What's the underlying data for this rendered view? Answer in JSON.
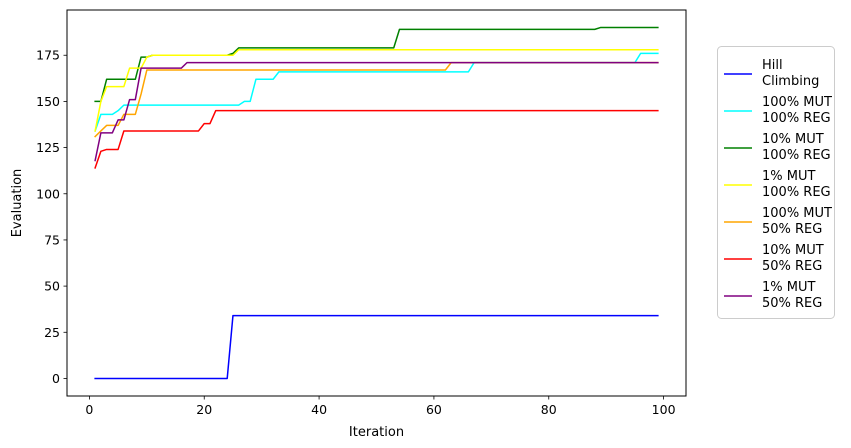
{
  "chart_data": {
    "type": "line",
    "title": "",
    "xlabel": "Iteration",
    "ylabel": "Evaluation",
    "xlim": [
      -3.9,
      103.9
    ],
    "ylim": [
      -9.5,
      199.5
    ],
    "xticks": [
      0,
      20,
      40,
      60,
      80,
      100
    ],
    "yticks": [
      0,
      25,
      50,
      75,
      100,
      125,
      150,
      175
    ],
    "grid": false,
    "legend_position": "right-outside",
    "series": [
      {
        "name": "Hill\nClimbing",
        "color": "#0000ff",
        "points": [
          [
            1,
            0
          ],
          [
            24,
            0
          ],
          [
            25,
            34
          ],
          [
            99,
            34
          ]
        ]
      },
      {
        "name": "100% MUT\n100% REG",
        "color": "#00ffff",
        "points": [
          [
            1,
            134
          ],
          [
            2,
            143
          ],
          [
            4,
            143
          ],
          [
            5,
            145
          ],
          [
            6,
            148
          ],
          [
            25,
            148
          ],
          [
            26,
            148
          ],
          [
            27,
            150
          ],
          [
            28,
            150
          ],
          [
            29,
            162
          ],
          [
            32,
            162
          ],
          [
            33,
            166
          ],
          [
            66,
            166
          ],
          [
            67,
            171
          ],
          [
            95,
            171
          ],
          [
            96,
            176
          ],
          [
            99,
            176
          ]
        ]
      },
      {
        "name": "10% MUT\n100% REG",
        "color": "#008000",
        "points": [
          [
            1,
            150
          ],
          [
            2,
            150
          ],
          [
            3,
            162
          ],
          [
            8,
            162
          ],
          [
            9,
            174
          ],
          [
            10,
            174
          ],
          [
            11,
            175
          ],
          [
            24,
            175
          ],
          [
            25,
            176
          ],
          [
            26,
            179
          ],
          [
            53,
            179
          ],
          [
            54,
            189
          ],
          [
            88,
            189
          ],
          [
            89,
            190
          ],
          [
            99,
            190
          ]
        ]
      },
      {
        "name": "1% MUT\n100% REG",
        "color": "#ffff00",
        "points": [
          [
            1,
            134
          ],
          [
            2,
            150
          ],
          [
            3,
            158
          ],
          [
            6,
            158
          ],
          [
            7,
            168
          ],
          [
            9,
            168
          ],
          [
            10,
            174
          ],
          [
            11,
            175
          ],
          [
            25,
            175
          ],
          [
            26,
            178
          ],
          [
            99,
            178
          ]
        ]
      },
      {
        "name": "100% MUT\n50% REG",
        "color": "#ffa500",
        "points": [
          [
            1,
            131
          ],
          [
            2,
            134
          ],
          [
            3,
            137
          ],
          [
            5,
            137
          ],
          [
            6,
            143
          ],
          [
            8,
            143
          ],
          [
            9,
            154
          ],
          [
            10,
            167
          ],
          [
            62,
            167
          ],
          [
            63,
            171
          ],
          [
            99,
            171
          ]
        ]
      },
      {
        "name": "10% MUT\n50% REG",
        "color": "#ff0000",
        "points": [
          [
            1,
            114
          ],
          [
            2,
            123
          ],
          [
            3,
            124
          ],
          [
            5,
            124
          ],
          [
            6,
            134
          ],
          [
            19,
            134
          ],
          [
            20,
            138
          ],
          [
            21,
            138
          ],
          [
            22,
            145
          ],
          [
            99,
            145
          ]
        ]
      },
      {
        "name": "1% MUT\n50% REG",
        "color": "#800080",
        "points": [
          [
            1,
            118
          ],
          [
            2,
            133
          ],
          [
            4,
            133
          ],
          [
            5,
            140
          ],
          [
            6,
            140
          ],
          [
            7,
            151
          ],
          [
            8,
            151
          ],
          [
            9,
            168
          ],
          [
            16,
            168
          ],
          [
            17,
            171
          ],
          [
            99,
            171
          ]
        ]
      }
    ]
  }
}
